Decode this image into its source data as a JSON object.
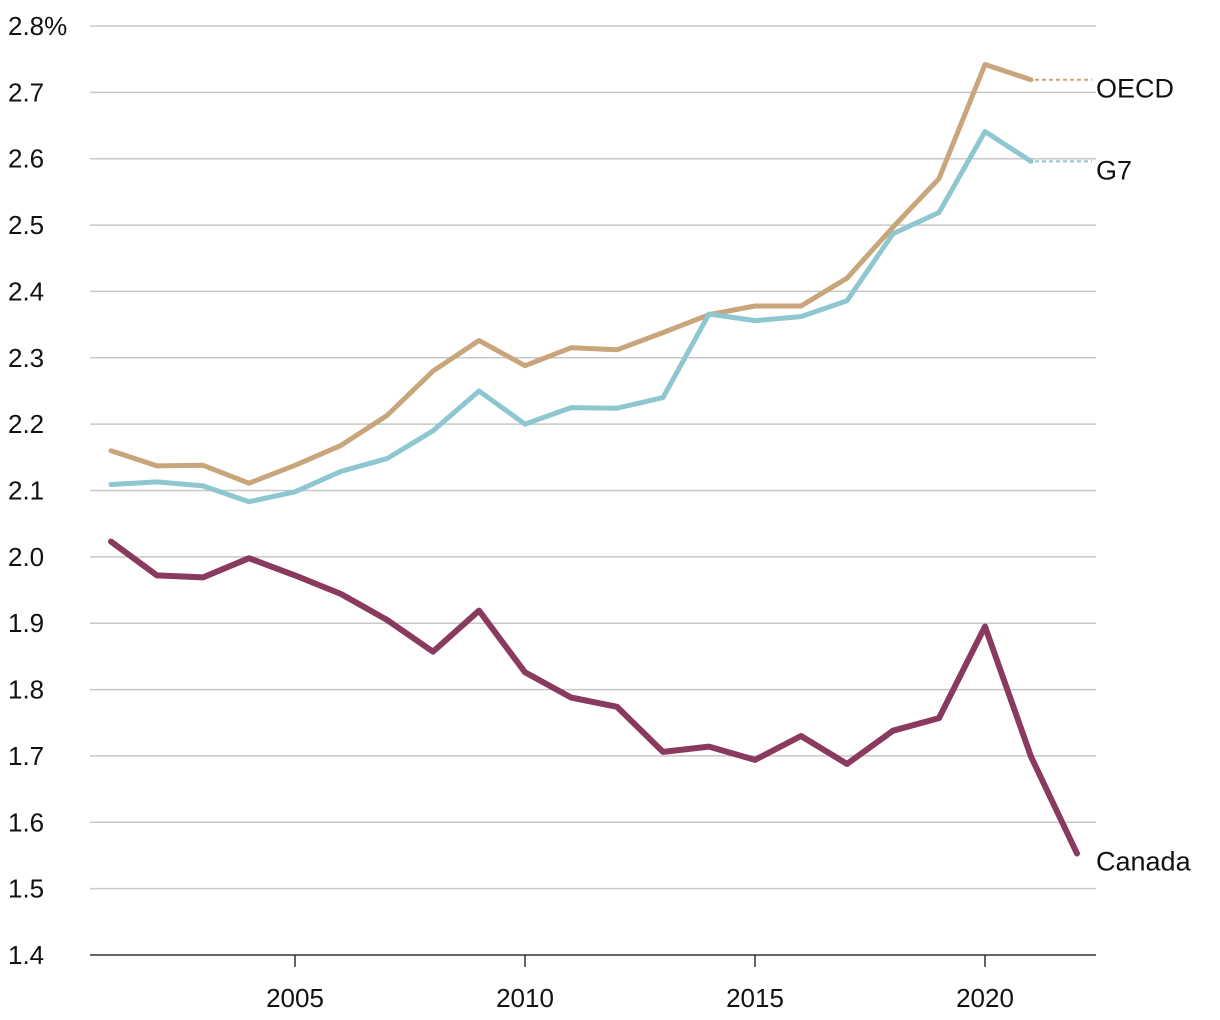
{
  "chart_data": {
    "type": "line",
    "title": "",
    "xlabel": "",
    "ylabel": "",
    "xlim": [
      2001,
      2022
    ],
    "ylim": [
      1.4,
      2.8
    ],
    "grid": true,
    "y_ticks": [
      1.4,
      1.5,
      1.6,
      1.7,
      1.8,
      1.9,
      2.0,
      2.1,
      2.2,
      2.3,
      2.4,
      2.5,
      2.6,
      2.7,
      2.8
    ],
    "y_tick_labels": [
      "1.4",
      "1.5",
      "1.6",
      "1.7",
      "1.8",
      "1.9",
      "2.0",
      "2.1",
      "2.2",
      "2.3",
      "2.4",
      "2.5",
      "2.6",
      "2.7",
      "2.8%"
    ],
    "x_ticks": [
      2005,
      2010,
      2015,
      2020
    ],
    "x_tick_labels": [
      "2005",
      "2010",
      "2015",
      "2020"
    ],
    "series": [
      {
        "name": "OECD",
        "label": "OECD",
        "color": "#c9a57c",
        "x": [
          2001,
          2002,
          2003,
          2004,
          2005,
          2006,
          2007,
          2008,
          2009,
          2010,
          2011,
          2012,
          2013,
          2014,
          2015,
          2016,
          2017,
          2018,
          2019,
          2020,
          2021
        ],
        "values": [
          2.16,
          2.137,
          2.138,
          2.111,
          2.138,
          2.168,
          2.213,
          2.28,
          2.326,
          2.288,
          2.315,
          2.312,
          2.338,
          2.365,
          2.378,
          2.378,
          2.42,
          2.497,
          2.57,
          2.742,
          2.719
        ],
        "label_leader": true
      },
      {
        "name": "G7",
        "label": "G7",
        "color": "#8ec7cf",
        "x": [
          2001,
          2002,
          2003,
          2004,
          2005,
          2006,
          2007,
          2008,
          2009,
          2010,
          2011,
          2012,
          2013,
          2014,
          2015,
          2016,
          2017,
          2018,
          2019,
          2020,
          2021
        ],
        "values": [
          2.109,
          2.113,
          2.107,
          2.083,
          2.098,
          2.129,
          2.148,
          2.19,
          2.25,
          2.2,
          2.225,
          2.224,
          2.24,
          2.366,
          2.356,
          2.362,
          2.386,
          2.487,
          2.519,
          2.641,
          2.596
        ],
        "label_leader": true
      },
      {
        "name": "Canada",
        "label": "Canada",
        "color": "#8a3a5e",
        "x": [
          2001,
          2002,
          2003,
          2004,
          2005,
          2006,
          2007,
          2008,
          2009,
          2010,
          2011,
          2012,
          2013,
          2014,
          2015,
          2016,
          2017,
          2018,
          2019,
          2020,
          2021,
          2022
        ],
        "values": [
          2.023,
          1.972,
          1.969,
          1.998,
          1.972,
          1.944,
          1.905,
          1.857,
          1.919,
          1.826,
          1.788,
          1.774,
          1.706,
          1.714,
          1.694,
          1.73,
          1.688,
          1.738,
          1.757,
          1.895,
          1.699,
          1.553
        ],
        "label_leader": false
      }
    ]
  }
}
